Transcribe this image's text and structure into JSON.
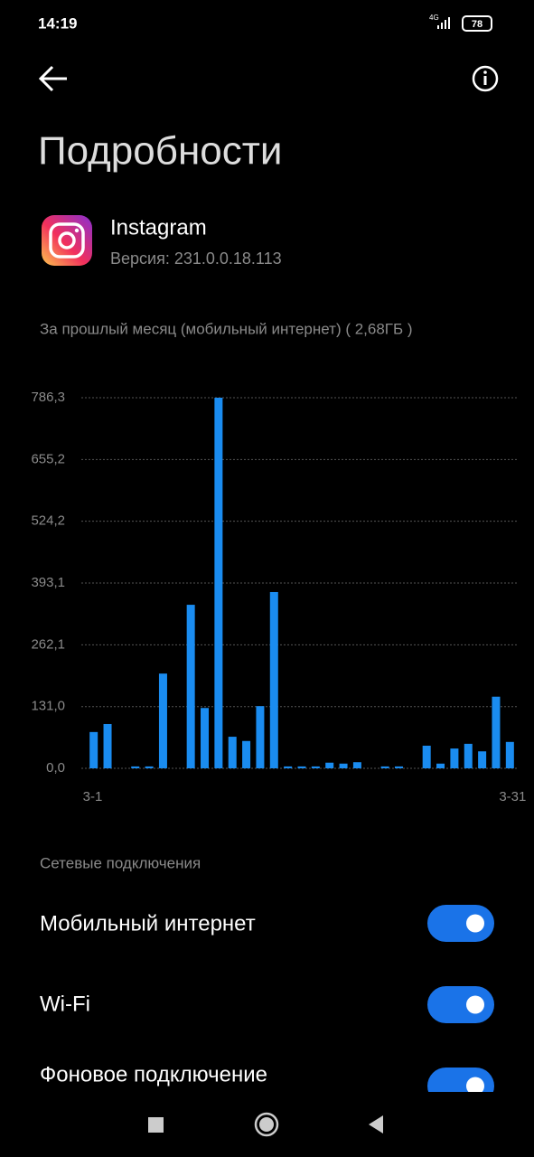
{
  "status_bar": {
    "time": "14:19",
    "network": "4G",
    "battery": "78"
  },
  "header": {
    "title": "Подробности"
  },
  "app": {
    "name": "Instagram",
    "version": "Версия: 231.0.0.18.113"
  },
  "chart_data": {
    "type": "bar",
    "title": "За прошлый месяц (мобильный интернет) ( 2,68ГБ )",
    "categories": [
      "3-1",
      null,
      null,
      null,
      null,
      null,
      null,
      null,
      null,
      null,
      null,
      null,
      null,
      null,
      null,
      null,
      null,
      null,
      null,
      null,
      null,
      null,
      null,
      null,
      null,
      null,
      null,
      null,
      null,
      null,
      "3-31"
    ],
    "values": [
      77,
      94,
      0,
      4,
      4,
      201,
      0,
      347,
      128,
      786.3,
      67,
      58,
      132,
      374,
      4,
      4,
      4,
      12,
      10,
      13,
      0,
      4,
      4,
      0,
      48,
      10,
      42,
      52,
      36,
      152,
      56
    ],
    "color": "#1a8cf0",
    "ylim": [
      0,
      786.3
    ],
    "yticks": [
      {
        "value": 0,
        "label": "0,0"
      },
      {
        "value": 131.0,
        "label": "131,0"
      },
      {
        "value": 262.1,
        "label": "262,1"
      },
      {
        "value": 393.1,
        "label": "393,1"
      },
      {
        "value": 524.2,
        "label": "524,2"
      },
      {
        "value": 655.2,
        "label": "655,2"
      },
      {
        "value": 786.3,
        "label": "786,3"
      }
    ],
    "grid": true
  },
  "section": {
    "title": "Сетевые подключения",
    "items": [
      "Мобильный интернет",
      "Wi-Fi",
      "Фоновое подключение"
    ]
  }
}
